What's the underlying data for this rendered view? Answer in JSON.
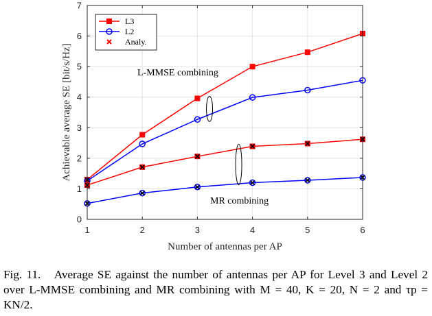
{
  "chart_data": {
    "type": "line",
    "title": "",
    "xlabel": "Number of antennas per AP",
    "ylabel": "Achievable average SE [bit/s/Hz]",
    "x": [
      1,
      2,
      3,
      4,
      5,
      6
    ],
    "xlim": [
      1,
      6
    ],
    "ylim": [
      0,
      7
    ],
    "xticks": [
      1,
      2,
      3,
      4,
      5,
      6
    ],
    "yticks": [
      0,
      1,
      2,
      3,
      4,
      5,
      6,
      7
    ],
    "grid": true,
    "legend_position": "top-left",
    "legend": [
      {
        "label": "L3",
        "color": "#ff0000",
        "marker": "square"
      },
      {
        "label": "L2",
        "color": "#0000ff",
        "marker": "circle"
      },
      {
        "label": "Analy.",
        "color": "#ff0000",
        "marker": "x"
      }
    ],
    "series": [
      {
        "level": "L3",
        "group": "L-MMSE combining",
        "color": "#ff0000",
        "marker": "square",
        "values": [
          1.3,
          2.77,
          3.96,
          5.0,
          5.47,
          6.08
        ]
      },
      {
        "level": "L2",
        "group": "L-MMSE combining",
        "color": "#0000ff",
        "marker": "circle",
        "values": [
          1.26,
          2.47,
          3.27,
          3.99,
          4.23,
          4.55
        ]
      },
      {
        "level": "L3",
        "group": "MR combining",
        "color": "#ff0000",
        "marker": "square",
        "values": [
          1.12,
          1.71,
          2.06,
          2.39,
          2.48,
          2.62
        ]
      },
      {
        "level": "L2",
        "group": "MR combining",
        "color": "#0000ff",
        "marker": "circle",
        "values": [
          0.52,
          0.86,
          1.06,
          1.2,
          1.28,
          1.37
        ]
      }
    ],
    "analytical_points": [
      {
        "x": 1,
        "y": 1.3
      },
      {
        "x": 1,
        "y": 1.12
      },
      {
        "x": 2,
        "y": 1.71
      },
      {
        "x": 3,
        "y": 2.06
      },
      {
        "x": 4,
        "y": 2.39
      },
      {
        "x": 5,
        "y": 2.48
      },
      {
        "x": 6,
        "y": 2.62
      },
      {
        "x": 1,
        "y": 0.52
      },
      {
        "x": 2,
        "y": 0.86
      },
      {
        "x": 3,
        "y": 1.06
      },
      {
        "x": 4,
        "y": 1.2
      },
      {
        "x": 5,
        "y": 1.28
      },
      {
        "x": 6,
        "y": 1.37
      }
    ],
    "annotations": [
      {
        "text": "L-MMSE combining",
        "ellipse_x": 3.22,
        "ellipse_y_range": [
          3.27,
          3.96
        ]
      },
      {
        "text": "MR combining",
        "ellipse_x": 3.75,
        "ellipse_y_range": [
          1.2,
          2.39
        ]
      }
    ]
  },
  "caption": {
    "label": "Fig. 11.",
    "text": "Average SE against the number of antennas per AP for Level 3 and Level 2 over L-MMSE combining and MR combining with M = 40, K = 20, N = 2 and τp = KN/2."
  }
}
